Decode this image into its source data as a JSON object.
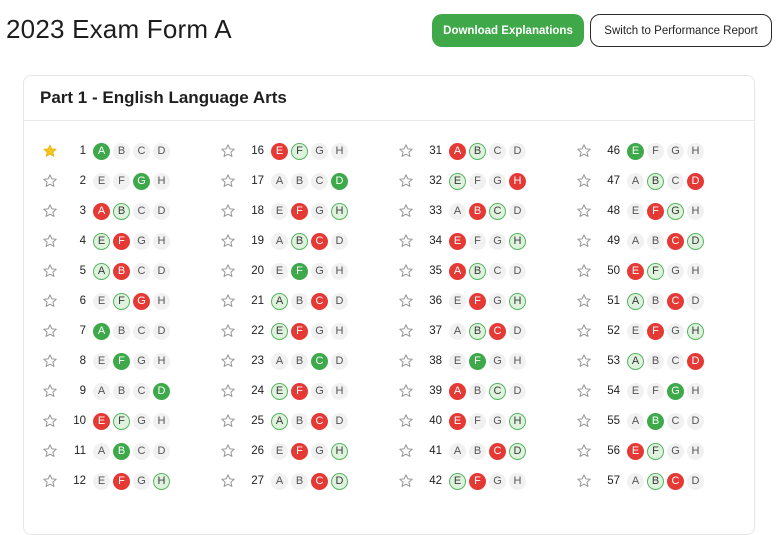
{
  "page": {
    "title": "2023 Exam Form A"
  },
  "buttons": {
    "download": "Download Explanations",
    "switch": "Switch to Performance Report"
  },
  "section": {
    "title": "Part 1 - English Language Arts"
  },
  "colors": {
    "correct": "#3ea94a",
    "wrong": "#e53935",
    "answer": "#dff2de",
    "star": "#f5c518"
  },
  "icons": {
    "star": "star-icon"
  },
  "questions": [
    {
      "n": "1",
      "starred": true,
      "choices": [
        {
          "l": "A",
          "s": "correct"
        },
        {
          "l": "B",
          "s": ""
        },
        {
          "l": "C",
          "s": ""
        },
        {
          "l": "D",
          "s": ""
        }
      ]
    },
    {
      "n": "2",
      "starred": false,
      "choices": [
        {
          "l": "E",
          "s": ""
        },
        {
          "l": "F",
          "s": ""
        },
        {
          "l": "G",
          "s": "correct"
        },
        {
          "l": "H",
          "s": ""
        }
      ]
    },
    {
      "n": "3",
      "starred": false,
      "choices": [
        {
          "l": "A",
          "s": "wrong"
        },
        {
          "l": "B",
          "s": "answer"
        },
        {
          "l": "C",
          "s": ""
        },
        {
          "l": "D",
          "s": ""
        }
      ]
    },
    {
      "n": "4",
      "starred": false,
      "choices": [
        {
          "l": "E",
          "s": "answer"
        },
        {
          "l": "F",
          "s": "wrong"
        },
        {
          "l": "G",
          "s": ""
        },
        {
          "l": "H",
          "s": ""
        }
      ]
    },
    {
      "n": "5",
      "starred": false,
      "choices": [
        {
          "l": "A",
          "s": "answer"
        },
        {
          "l": "B",
          "s": "wrong"
        },
        {
          "l": "C",
          "s": ""
        },
        {
          "l": "D",
          "s": ""
        }
      ]
    },
    {
      "n": "6",
      "starred": false,
      "choices": [
        {
          "l": "E",
          "s": ""
        },
        {
          "l": "F",
          "s": "answer"
        },
        {
          "l": "G",
          "s": "wrong"
        },
        {
          "l": "H",
          "s": ""
        }
      ]
    },
    {
      "n": "7",
      "starred": false,
      "choices": [
        {
          "l": "A",
          "s": "correct"
        },
        {
          "l": "B",
          "s": ""
        },
        {
          "l": "C",
          "s": ""
        },
        {
          "l": "D",
          "s": ""
        }
      ]
    },
    {
      "n": "8",
      "starred": false,
      "choices": [
        {
          "l": "E",
          "s": ""
        },
        {
          "l": "F",
          "s": "correct"
        },
        {
          "l": "G",
          "s": ""
        },
        {
          "l": "H",
          "s": ""
        }
      ]
    },
    {
      "n": "9",
      "starred": false,
      "choices": [
        {
          "l": "A",
          "s": ""
        },
        {
          "l": "B",
          "s": ""
        },
        {
          "l": "C",
          "s": ""
        },
        {
          "l": "D",
          "s": "correct"
        }
      ]
    },
    {
      "n": "10",
      "starred": false,
      "choices": [
        {
          "l": "E",
          "s": "wrong"
        },
        {
          "l": "F",
          "s": "answer"
        },
        {
          "l": "G",
          "s": ""
        },
        {
          "l": "H",
          "s": ""
        }
      ]
    },
    {
      "n": "11",
      "starred": false,
      "choices": [
        {
          "l": "A",
          "s": ""
        },
        {
          "l": "B",
          "s": "correct"
        },
        {
          "l": "C",
          "s": ""
        },
        {
          "l": "D",
          "s": ""
        }
      ]
    },
    {
      "n": "12",
      "starred": false,
      "choices": [
        {
          "l": "E",
          "s": ""
        },
        {
          "l": "F",
          "s": "wrong"
        },
        {
          "l": "G",
          "s": ""
        },
        {
          "l": "H",
          "s": "answer"
        }
      ]
    },
    {
      "n": "16",
      "starred": false,
      "choices": [
        {
          "l": "E",
          "s": "wrong"
        },
        {
          "l": "F",
          "s": "answer"
        },
        {
          "l": "G",
          "s": ""
        },
        {
          "l": "H",
          "s": ""
        }
      ]
    },
    {
      "n": "17",
      "starred": false,
      "choices": [
        {
          "l": "A",
          "s": ""
        },
        {
          "l": "B",
          "s": ""
        },
        {
          "l": "C",
          "s": ""
        },
        {
          "l": "D",
          "s": "correct"
        }
      ]
    },
    {
      "n": "18",
      "starred": false,
      "choices": [
        {
          "l": "E",
          "s": ""
        },
        {
          "l": "F",
          "s": "wrong"
        },
        {
          "l": "G",
          "s": ""
        },
        {
          "l": "H",
          "s": "answer"
        }
      ]
    },
    {
      "n": "19",
      "starred": false,
      "choices": [
        {
          "l": "A",
          "s": ""
        },
        {
          "l": "B",
          "s": "answer"
        },
        {
          "l": "C",
          "s": "wrong"
        },
        {
          "l": "D",
          "s": ""
        }
      ]
    },
    {
      "n": "20",
      "starred": false,
      "choices": [
        {
          "l": "E",
          "s": ""
        },
        {
          "l": "F",
          "s": "correct"
        },
        {
          "l": "G",
          "s": ""
        },
        {
          "l": "H",
          "s": ""
        }
      ]
    },
    {
      "n": "21",
      "starred": false,
      "choices": [
        {
          "l": "A",
          "s": "answer"
        },
        {
          "l": "B",
          "s": ""
        },
        {
          "l": "C",
          "s": "wrong"
        },
        {
          "l": "D",
          "s": ""
        }
      ]
    },
    {
      "n": "22",
      "starred": false,
      "choices": [
        {
          "l": "E",
          "s": "answer"
        },
        {
          "l": "F",
          "s": "wrong"
        },
        {
          "l": "G",
          "s": ""
        },
        {
          "l": "H",
          "s": ""
        }
      ]
    },
    {
      "n": "23",
      "starred": false,
      "choices": [
        {
          "l": "A",
          "s": ""
        },
        {
          "l": "B",
          "s": ""
        },
        {
          "l": "C",
          "s": "correct"
        },
        {
          "l": "D",
          "s": ""
        }
      ]
    },
    {
      "n": "24",
      "starred": false,
      "choices": [
        {
          "l": "E",
          "s": "answer"
        },
        {
          "l": "F",
          "s": "wrong"
        },
        {
          "l": "G",
          "s": ""
        },
        {
          "l": "H",
          "s": ""
        }
      ]
    },
    {
      "n": "25",
      "starred": false,
      "choices": [
        {
          "l": "A",
          "s": "answer"
        },
        {
          "l": "B",
          "s": ""
        },
        {
          "l": "C",
          "s": "wrong"
        },
        {
          "l": "D",
          "s": ""
        }
      ]
    },
    {
      "n": "26",
      "starred": false,
      "choices": [
        {
          "l": "E",
          "s": ""
        },
        {
          "l": "F",
          "s": "wrong"
        },
        {
          "l": "G",
          "s": ""
        },
        {
          "l": "H",
          "s": "answer"
        }
      ]
    },
    {
      "n": "27",
      "starred": false,
      "choices": [
        {
          "l": "A",
          "s": ""
        },
        {
          "l": "B",
          "s": ""
        },
        {
          "l": "C",
          "s": "wrong"
        },
        {
          "l": "D",
          "s": "answer"
        }
      ]
    },
    {
      "n": "31",
      "starred": false,
      "choices": [
        {
          "l": "A",
          "s": "wrong"
        },
        {
          "l": "B",
          "s": "answer"
        },
        {
          "l": "C",
          "s": ""
        },
        {
          "l": "D",
          "s": ""
        }
      ]
    },
    {
      "n": "32",
      "starred": false,
      "choices": [
        {
          "l": "E",
          "s": "answer"
        },
        {
          "l": "F",
          "s": ""
        },
        {
          "l": "G",
          "s": ""
        },
        {
          "l": "H",
          "s": "wrong"
        }
      ]
    },
    {
      "n": "33",
      "starred": false,
      "choices": [
        {
          "l": "A",
          "s": ""
        },
        {
          "l": "B",
          "s": "wrong"
        },
        {
          "l": "C",
          "s": "answer"
        },
        {
          "l": "D",
          "s": ""
        }
      ]
    },
    {
      "n": "34",
      "starred": false,
      "choices": [
        {
          "l": "E",
          "s": "wrong"
        },
        {
          "l": "F",
          "s": ""
        },
        {
          "l": "G",
          "s": ""
        },
        {
          "l": "H",
          "s": "answer"
        }
      ]
    },
    {
      "n": "35",
      "starred": false,
      "choices": [
        {
          "l": "A",
          "s": "wrong"
        },
        {
          "l": "B",
          "s": "answer"
        },
        {
          "l": "C",
          "s": ""
        },
        {
          "l": "D",
          "s": ""
        }
      ]
    },
    {
      "n": "36",
      "starred": false,
      "choices": [
        {
          "l": "E",
          "s": ""
        },
        {
          "l": "F",
          "s": "wrong"
        },
        {
          "l": "G",
          "s": ""
        },
        {
          "l": "H",
          "s": "answer"
        }
      ]
    },
    {
      "n": "37",
      "starred": false,
      "choices": [
        {
          "l": "A",
          "s": ""
        },
        {
          "l": "B",
          "s": "answer"
        },
        {
          "l": "C",
          "s": "wrong"
        },
        {
          "l": "D",
          "s": ""
        }
      ]
    },
    {
      "n": "38",
      "starred": false,
      "choices": [
        {
          "l": "E",
          "s": ""
        },
        {
          "l": "F",
          "s": "correct"
        },
        {
          "l": "G",
          "s": ""
        },
        {
          "l": "H",
          "s": ""
        }
      ]
    },
    {
      "n": "39",
      "starred": false,
      "choices": [
        {
          "l": "A",
          "s": "wrong"
        },
        {
          "l": "B",
          "s": ""
        },
        {
          "l": "C",
          "s": "answer"
        },
        {
          "l": "D",
          "s": ""
        }
      ]
    },
    {
      "n": "40",
      "starred": false,
      "choices": [
        {
          "l": "E",
          "s": "wrong"
        },
        {
          "l": "F",
          "s": ""
        },
        {
          "l": "G",
          "s": ""
        },
        {
          "l": "H",
          "s": "answer"
        }
      ]
    },
    {
      "n": "41",
      "starred": false,
      "choices": [
        {
          "l": "A",
          "s": ""
        },
        {
          "l": "B",
          "s": ""
        },
        {
          "l": "C",
          "s": "wrong"
        },
        {
          "l": "D",
          "s": "answer"
        }
      ]
    },
    {
      "n": "42",
      "starred": false,
      "choices": [
        {
          "l": "E",
          "s": "answer"
        },
        {
          "l": "F",
          "s": "wrong"
        },
        {
          "l": "G",
          "s": ""
        },
        {
          "l": "H",
          "s": ""
        }
      ]
    },
    {
      "n": "46",
      "starred": false,
      "choices": [
        {
          "l": "E",
          "s": "correct"
        },
        {
          "l": "F",
          "s": ""
        },
        {
          "l": "G",
          "s": ""
        },
        {
          "l": "H",
          "s": ""
        }
      ]
    },
    {
      "n": "47",
      "starred": false,
      "choices": [
        {
          "l": "A",
          "s": ""
        },
        {
          "l": "B",
          "s": "answer"
        },
        {
          "l": "C",
          "s": ""
        },
        {
          "l": "D",
          "s": "wrong"
        }
      ]
    },
    {
      "n": "48",
      "starred": false,
      "choices": [
        {
          "l": "E",
          "s": ""
        },
        {
          "l": "F",
          "s": "wrong"
        },
        {
          "l": "G",
          "s": "answer"
        },
        {
          "l": "H",
          "s": ""
        }
      ]
    },
    {
      "n": "49",
      "starred": false,
      "choices": [
        {
          "l": "A",
          "s": ""
        },
        {
          "l": "B",
          "s": ""
        },
        {
          "l": "C",
          "s": "wrong"
        },
        {
          "l": "D",
          "s": "answer"
        }
      ]
    },
    {
      "n": "50",
      "starred": false,
      "choices": [
        {
          "l": "E",
          "s": "wrong"
        },
        {
          "l": "F",
          "s": "answer"
        },
        {
          "l": "G",
          "s": ""
        },
        {
          "l": "H",
          "s": ""
        }
      ]
    },
    {
      "n": "51",
      "starred": false,
      "choices": [
        {
          "l": "A",
          "s": "answer"
        },
        {
          "l": "B",
          "s": ""
        },
        {
          "l": "C",
          "s": "wrong"
        },
        {
          "l": "D",
          "s": ""
        }
      ]
    },
    {
      "n": "52",
      "starred": false,
      "choices": [
        {
          "l": "E",
          "s": ""
        },
        {
          "l": "F",
          "s": "wrong"
        },
        {
          "l": "G",
          "s": ""
        },
        {
          "l": "H",
          "s": "answer"
        }
      ]
    },
    {
      "n": "53",
      "starred": false,
      "choices": [
        {
          "l": "A",
          "s": "answer"
        },
        {
          "l": "B",
          "s": ""
        },
        {
          "l": "C",
          "s": ""
        },
        {
          "l": "D",
          "s": "wrong"
        }
      ]
    },
    {
      "n": "54",
      "starred": false,
      "choices": [
        {
          "l": "E",
          "s": ""
        },
        {
          "l": "F",
          "s": ""
        },
        {
          "l": "G",
          "s": "correct"
        },
        {
          "l": "H",
          "s": ""
        }
      ]
    },
    {
      "n": "55",
      "starred": false,
      "choices": [
        {
          "l": "A",
          "s": ""
        },
        {
          "l": "B",
          "s": "correct"
        },
        {
          "l": "C",
          "s": ""
        },
        {
          "l": "D",
          "s": ""
        }
      ]
    },
    {
      "n": "56",
      "starred": false,
      "choices": [
        {
          "l": "E",
          "s": "wrong"
        },
        {
          "l": "F",
          "s": "answer"
        },
        {
          "l": "G",
          "s": ""
        },
        {
          "l": "H",
          "s": ""
        }
      ]
    },
    {
      "n": "57",
      "starred": false,
      "choices": [
        {
          "l": "A",
          "s": ""
        },
        {
          "l": "B",
          "s": "answer"
        },
        {
          "l": "C",
          "s": "wrong"
        },
        {
          "l": "D",
          "s": ""
        }
      ]
    }
  ]
}
